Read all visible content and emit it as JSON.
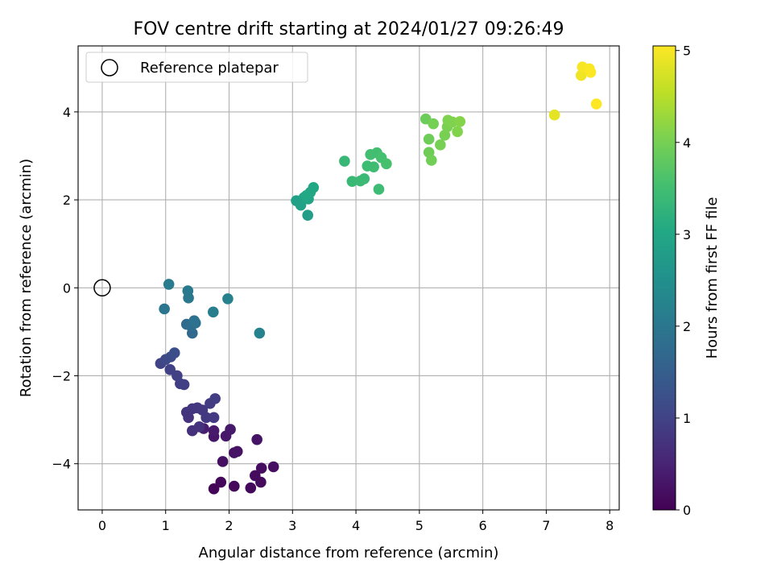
{
  "chart_data": {
    "type": "scatter",
    "title": "FOV centre drift starting at 2024/01/27 09:26:49",
    "xlabel": "Angular distance from reference (arcmin)",
    "ylabel": "Rotation from reference (arcmin)",
    "xlim": [
      -0.38,
      8.15
    ],
    "ylim": [
      -5.05,
      5.5
    ],
    "xticks": [
      0,
      1,
      2,
      3,
      4,
      5,
      6,
      7,
      8
    ],
    "xtick_labels": [
      "0",
      "1",
      "2",
      "3",
      "4",
      "5",
      "6",
      "7",
      "8"
    ],
    "yticks": [
      -4,
      -2,
      0,
      2,
      4
    ],
    "ytick_labels": [
      "−4",
      "−2",
      "0",
      "2",
      "4"
    ],
    "grid": true,
    "legend": {
      "placement": "top-left",
      "entries": [
        "Reference platepar"
      ]
    },
    "reference_point": {
      "x": 0,
      "y": 0
    },
    "colorbar": {
      "label": "Hours from first FF file",
      "range": [
        0,
        5.05
      ],
      "ticks": [
        0,
        1,
        2,
        3,
        4,
        5
      ],
      "tick_labels": [
        "0",
        "1",
        "2",
        "3",
        "4",
        "5"
      ],
      "colormap": "viridis"
    },
    "points": [
      {
        "x": 1.76,
        "y": -4.57,
        "c": 0.05
      },
      {
        "x": 1.87,
        "y": -4.42,
        "c": 0.08
      },
      {
        "x": 2.08,
        "y": -4.51,
        "c": 0.1
      },
      {
        "x": 2.34,
        "y": -4.55,
        "c": 0.12
      },
      {
        "x": 2.5,
        "y": -4.42,
        "c": 0.14
      },
      {
        "x": 2.41,
        "y": -4.27,
        "c": 0.16
      },
      {
        "x": 2.51,
        "y": -4.1,
        "c": 0.18
      },
      {
        "x": 2.7,
        "y": -4.07,
        "c": 0.2
      },
      {
        "x": 1.9,
        "y": -3.95,
        "c": 0.22
      },
      {
        "x": 2.08,
        "y": -3.75,
        "c": 0.24
      },
      {
        "x": 2.13,
        "y": -3.72,
        "c": 0.26
      },
      {
        "x": 2.44,
        "y": -3.45,
        "c": 0.28
      },
      {
        "x": 1.76,
        "y": -3.38,
        "c": 0.3
      },
      {
        "x": 1.95,
        "y": -3.37,
        "c": 0.32
      },
      {
        "x": 2.02,
        "y": -3.22,
        "c": 0.34
      },
      {
        "x": 1.76,
        "y": -3.25,
        "c": 0.36
      },
      {
        "x": 1.6,
        "y": -3.2,
        "c": 0.4
      },
      {
        "x": 1.42,
        "y": -3.25,
        "c": 0.7
      },
      {
        "x": 1.53,
        "y": -3.16,
        "c": 0.72
      },
      {
        "x": 1.36,
        "y": -2.95,
        "c": 0.74
      },
      {
        "x": 1.33,
        "y": -2.83,
        "c": 0.76
      },
      {
        "x": 1.42,
        "y": -2.75,
        "c": 0.78
      },
      {
        "x": 1.5,
        "y": -2.73,
        "c": 0.8
      },
      {
        "x": 1.58,
        "y": -2.78,
        "c": 0.82
      },
      {
        "x": 1.64,
        "y": -2.95,
        "c": 0.84
      },
      {
        "x": 1.76,
        "y": -2.95,
        "c": 0.86
      },
      {
        "x": 1.7,
        "y": -2.63,
        "c": 0.88
      },
      {
        "x": 1.78,
        "y": -2.52,
        "c": 0.9
      },
      {
        "x": 1.23,
        "y": -2.18,
        "c": 0.92
      },
      {
        "x": 1.29,
        "y": -2.2,
        "c": 0.94
      },
      {
        "x": 1.18,
        "y": -2.0,
        "c": 0.96
      },
      {
        "x": 1.07,
        "y": -1.86,
        "c": 0.98
      },
      {
        "x": 0.92,
        "y": -1.72,
        "c": 1.0
      },
      {
        "x": 1.0,
        "y": -1.63,
        "c": 1.1
      },
      {
        "x": 1.08,
        "y": -1.57,
        "c": 1.15
      },
      {
        "x": 1.14,
        "y": -1.48,
        "c": 1.2
      },
      {
        "x": 1.42,
        "y": -1.03,
        "c": 1.7
      },
      {
        "x": 1.33,
        "y": -0.83,
        "c": 1.75
      },
      {
        "x": 1.4,
        "y": -0.87,
        "c": 1.8
      },
      {
        "x": 1.47,
        "y": -0.8,
        "c": 1.85
      },
      {
        "x": 1.45,
        "y": -0.75,
        "c": 1.9
      },
      {
        "x": 0.98,
        "y": -0.48,
        "c": 1.95
      },
      {
        "x": 1.36,
        "y": -0.23,
        "c": 2.0
      },
      {
        "x": 1.35,
        "y": -0.07,
        "c": 2.05
      },
      {
        "x": 1.05,
        "y": 0.08,
        "c": 2.1
      },
      {
        "x": 1.75,
        "y": -0.55,
        "c": 2.15
      },
      {
        "x": 1.98,
        "y": -0.25,
        "c": 2.2
      },
      {
        "x": 2.48,
        "y": -1.03,
        "c": 2.25
      },
      {
        "x": 3.24,
        "y": 1.65,
        "c": 2.8
      },
      {
        "x": 3.06,
        "y": 1.98,
        "c": 2.85
      },
      {
        "x": 3.13,
        "y": 1.88,
        "c": 2.88
      },
      {
        "x": 3.18,
        "y": 2.05,
        "c": 2.92
      },
      {
        "x": 3.25,
        "y": 2.02,
        "c": 2.95
      },
      {
        "x": 3.28,
        "y": 2.17,
        "c": 2.98
      },
      {
        "x": 3.33,
        "y": 2.28,
        "c": 3.0
      },
      {
        "x": 3.22,
        "y": 2.1,
        "c": 3.02
      },
      {
        "x": 3.82,
        "y": 2.88,
        "c": 3.35
      },
      {
        "x": 3.94,
        "y": 2.42,
        "c": 3.38
      },
      {
        "x": 4.07,
        "y": 2.43,
        "c": 3.4
      },
      {
        "x": 4.13,
        "y": 2.48,
        "c": 3.42
      },
      {
        "x": 4.36,
        "y": 2.24,
        "c": 3.44
      },
      {
        "x": 4.18,
        "y": 2.77,
        "c": 3.46
      },
      {
        "x": 4.28,
        "y": 2.75,
        "c": 3.48
      },
      {
        "x": 4.23,
        "y": 3.03,
        "c": 3.5
      },
      {
        "x": 4.33,
        "y": 3.07,
        "c": 3.52
      },
      {
        "x": 4.4,
        "y": 2.96,
        "c": 3.54
      },
      {
        "x": 4.48,
        "y": 2.82,
        "c": 3.56
      },
      {
        "x": 5.1,
        "y": 3.84,
        "c": 3.9
      },
      {
        "x": 5.15,
        "y": 3.38,
        "c": 3.92
      },
      {
        "x": 5.15,
        "y": 3.08,
        "c": 3.94
      },
      {
        "x": 5.19,
        "y": 2.9,
        "c": 3.96
      },
      {
        "x": 5.22,
        "y": 3.73,
        "c": 3.98
      },
      {
        "x": 5.33,
        "y": 3.25,
        "c": 4.0
      },
      {
        "x": 5.4,
        "y": 3.47,
        "c": 4.02
      },
      {
        "x": 5.44,
        "y": 3.66,
        "c": 4.04
      },
      {
        "x": 5.45,
        "y": 3.81,
        "c": 4.06
      },
      {
        "x": 5.52,
        "y": 3.77,
        "c": 4.08
      },
      {
        "x": 5.6,
        "y": 3.55,
        "c": 4.1
      },
      {
        "x": 5.64,
        "y": 3.78,
        "c": 4.12
      },
      {
        "x": 7.13,
        "y": 3.93,
        "c": 4.85
      },
      {
        "x": 7.55,
        "y": 4.83,
        "c": 4.95
      },
      {
        "x": 7.57,
        "y": 5.02,
        "c": 5.0
      },
      {
        "x": 7.68,
        "y": 4.98,
        "c": 5.02
      },
      {
        "x": 7.7,
        "y": 4.9,
        "c": 5.04
      },
      {
        "x": 7.79,
        "y": 4.18,
        "c": 5.05
      }
    ]
  }
}
